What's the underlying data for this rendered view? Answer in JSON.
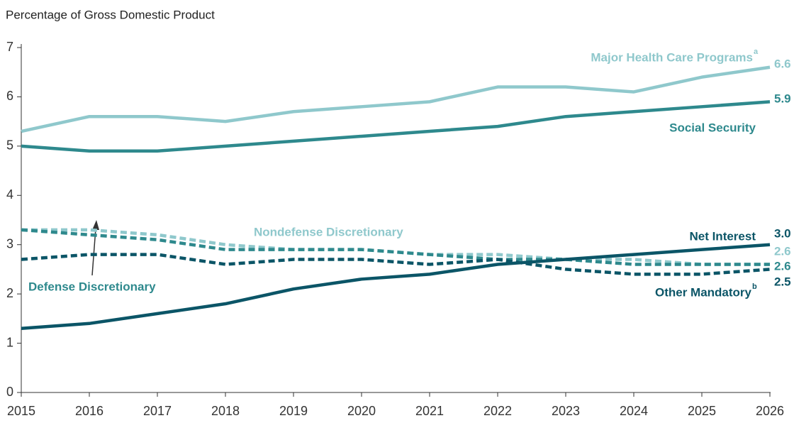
{
  "chart_data": {
    "type": "line",
    "y_axis_label": "Percentage of Gross Domestic Product",
    "x": [
      2015,
      2016,
      2017,
      2018,
      2019,
      2020,
      2021,
      2022,
      2023,
      2024,
      2025,
      2026
    ],
    "xlim": [
      2015,
      2026
    ],
    "xticks": [
      2015,
      2016,
      2017,
      2018,
      2019,
      2020,
      2021,
      2022,
      2023,
      2024,
      2025,
      2026
    ],
    "ylim": [
      0,
      7
    ],
    "yticks": [
      0,
      1,
      2,
      3,
      4,
      5,
      6,
      7
    ],
    "grid": false,
    "series": [
      {
        "name": "Major Health Care Programs",
        "footnote": "a",
        "color": "#8fc8cc",
        "dashed": false,
        "values": [
          5.3,
          5.6,
          5.6,
          5.5,
          5.7,
          5.8,
          5.9,
          6.2,
          6.2,
          6.1,
          6.4,
          6.6
        ],
        "value_labels": [
          null,
          null,
          null,
          null,
          null,
          null,
          null,
          null,
          null,
          null,
          null,
          "6.6"
        ]
      },
      {
        "name": "Social Security",
        "color": "#2e898d",
        "dashed": false,
        "values": [
          5.0,
          4.9,
          4.9,
          5.0,
          5.1,
          5.2,
          5.3,
          5.4,
          5.6,
          5.7,
          5.8,
          5.9
        ],
        "value_labels": [
          null,
          null,
          null,
          null,
          null,
          null,
          null,
          null,
          null,
          null,
          null,
          "5.9"
        ]
      },
      {
        "name": "Nondefense Discretionary",
        "color": "#8fc8cc",
        "dashed": true,
        "values": [
          3.3,
          3.3,
          3.2,
          3.0,
          2.9,
          2.9,
          2.8,
          2.8,
          2.7,
          2.7,
          2.6,
          2.6
        ],
        "value_labels": [
          null,
          null,
          null,
          null,
          null,
          null,
          null,
          null,
          null,
          null,
          null,
          "2.6"
        ]
      },
      {
        "name": "Defense Discretionary",
        "color": "#2e898d",
        "dashed": true,
        "values": [
          3.3,
          3.2,
          3.1,
          2.9,
          2.9,
          2.9,
          2.8,
          2.7,
          2.7,
          2.6,
          2.6,
          2.6
        ],
        "value_labels": [
          null,
          null,
          null,
          null,
          null,
          null,
          null,
          null,
          null,
          null,
          null,
          "2.6"
        ]
      },
      {
        "name": "Other Mandatory",
        "footnote": "b",
        "color": "#0b5567",
        "dashed": true,
        "values": [
          2.7,
          2.8,
          2.8,
          2.6,
          2.7,
          2.7,
          2.6,
          2.7,
          2.5,
          2.4,
          2.4,
          2.5
        ],
        "value_labels": [
          null,
          null,
          null,
          null,
          null,
          null,
          null,
          null,
          null,
          null,
          null,
          "2.5"
        ]
      },
      {
        "name": "Net Interest",
        "color": "#0b5567",
        "dashed": false,
        "values": [
          1.3,
          1.4,
          1.6,
          1.8,
          2.1,
          2.3,
          2.4,
          2.6,
          2.7,
          2.8,
          2.9,
          3.0
        ],
        "value_labels": [
          null,
          null,
          null,
          null,
          null,
          null,
          null,
          null,
          null,
          null,
          null,
          "3.0"
        ]
      }
    ]
  }
}
